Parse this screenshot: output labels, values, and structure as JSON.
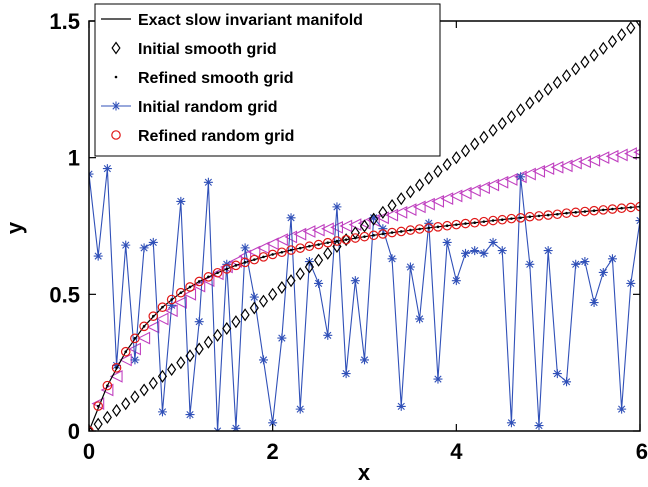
{
  "chart_data": {
    "type": "line",
    "title": "",
    "xlabel": "x",
    "ylabel": "y",
    "xlim": [
      0,
      6
    ],
    "ylim": [
      0,
      1.5
    ],
    "xticks": [
      "0",
      "2",
      "4",
      "6"
    ],
    "yticks": [
      "0",
      "0.5",
      "1",
      "1.5"
    ],
    "grid": false,
    "legend_position": "top-left",
    "colors": {
      "exact": "#000000",
      "initial_smooth": "#000000",
      "refined_smooth": "#000000",
      "initial_random": "#3050b8",
      "refined_random": "#e01818",
      "unlabeled_triangles": "#c040c0"
    },
    "series": [
      {
        "name": "Exact slow invariant manifold",
        "style": "line",
        "x": [
          0.0,
          0.2,
          0.4,
          0.6,
          0.8,
          1.0,
          1.2,
          1.4,
          1.6,
          1.8,
          2.0,
          2.2,
          2.4,
          2.6,
          2.8,
          3.0,
          3.2,
          3.4,
          3.6,
          3.8,
          4.0,
          4.2,
          4.4,
          4.6,
          4.8,
          5.0,
          5.2,
          5.4,
          5.6,
          5.8,
          6.0
        ],
        "y": [
          0.0,
          0.166,
          0.29,
          0.383,
          0.453,
          0.506,
          0.547,
          0.579,
          0.606,
          0.627,
          0.646,
          0.662,
          0.676,
          0.689,
          0.7,
          0.711,
          0.721,
          0.73,
          0.739,
          0.747,
          0.755,
          0.762,
          0.77,
          0.777,
          0.784,
          0.79,
          0.797,
          0.803,
          0.809,
          0.815,
          0.821
        ]
      },
      {
        "name": "Initial smooth grid",
        "style": "diamond",
        "x": [
          0.0,
          0.1,
          0.2,
          0.3,
          0.4,
          0.5,
          0.6,
          0.7,
          0.8,
          0.9,
          1.0,
          1.1,
          1.2,
          1.3,
          1.4,
          1.5,
          1.6,
          1.7,
          1.8,
          1.9,
          2.0,
          2.1,
          2.2,
          2.3,
          2.4,
          2.5,
          2.6,
          2.7,
          2.8,
          2.9,
          3.0,
          3.1,
          3.2,
          3.3,
          3.4,
          3.5,
          3.6,
          3.7,
          3.8,
          3.9,
          4.0,
          4.1,
          4.2,
          4.3,
          4.4,
          4.5,
          4.6,
          4.7,
          4.8,
          4.9,
          5.0,
          5.1,
          5.2,
          5.3,
          5.4,
          5.5,
          5.6,
          5.7,
          5.8,
          5.9,
          6.0
        ],
        "y": [
          0.0,
          0.025,
          0.05,
          0.075,
          0.1,
          0.125,
          0.15,
          0.175,
          0.2,
          0.225,
          0.25,
          0.275,
          0.3,
          0.325,
          0.35,
          0.375,
          0.4,
          0.425,
          0.45,
          0.475,
          0.5,
          0.525,
          0.55,
          0.575,
          0.6,
          0.625,
          0.65,
          0.675,
          0.7,
          0.725,
          0.75,
          0.775,
          0.8,
          0.825,
          0.85,
          0.875,
          0.9,
          0.925,
          0.95,
          0.975,
          1.0,
          1.025,
          1.05,
          1.075,
          1.1,
          1.125,
          1.15,
          1.175,
          1.2,
          1.225,
          1.25,
          1.275,
          1.3,
          1.325,
          1.35,
          1.375,
          1.4,
          1.425,
          1.45,
          1.475,
          1.5
        ]
      },
      {
        "name": "Refined smooth grid",
        "style": "dot",
        "x": [
          0.0,
          0.1,
          0.2,
          0.3,
          0.4,
          0.5,
          0.6,
          0.7,
          0.8,
          0.9,
          1.0,
          1.1,
          1.2,
          1.3,
          1.4,
          1.5,
          1.6,
          1.7,
          1.8,
          1.9,
          2.0,
          2.1,
          2.2,
          2.3,
          2.4,
          2.5,
          2.6,
          2.7,
          2.8,
          2.9,
          3.0,
          3.1,
          3.2,
          3.3,
          3.4,
          3.5,
          3.6,
          3.7,
          3.8,
          3.9,
          4.0,
          4.1,
          4.2,
          4.3,
          4.4,
          4.5,
          4.6,
          4.7,
          4.8,
          4.9,
          5.0,
          5.1,
          5.2,
          5.3,
          5.4,
          5.5,
          5.6,
          5.7,
          5.8,
          5.9,
          6.0
        ],
        "y": [
          0.0,
          0.091,
          0.166,
          0.231,
          0.29,
          0.339,
          0.383,
          0.42,
          0.453,
          0.481,
          0.506,
          0.527,
          0.547,
          0.564,
          0.579,
          0.593,
          0.606,
          0.617,
          0.627,
          0.637,
          0.646,
          0.654,
          0.662,
          0.669,
          0.676,
          0.682,
          0.689,
          0.695,
          0.7,
          0.706,
          0.711,
          0.716,
          0.721,
          0.726,
          0.73,
          0.735,
          0.739,
          0.743,
          0.747,
          0.751,
          0.755,
          0.759,
          0.762,
          0.766,
          0.77,
          0.773,
          0.777,
          0.78,
          0.784,
          0.787,
          0.79,
          0.793,
          0.797,
          0.8,
          0.803,
          0.806,
          0.809,
          0.812,
          0.815,
          0.818,
          0.821
        ]
      },
      {
        "name": "Initial random grid",
        "style": "line-star",
        "x": [
          0.0,
          0.1,
          0.2,
          0.3,
          0.4,
          0.5,
          0.6,
          0.7,
          0.8,
          0.9,
          1.0,
          1.1,
          1.2,
          1.3,
          1.4,
          1.5,
          1.6,
          1.7,
          1.8,
          1.9,
          2.0,
          2.1,
          2.2,
          2.3,
          2.4,
          2.5,
          2.6,
          2.7,
          2.8,
          2.9,
          3.0,
          3.1,
          3.2,
          3.3,
          3.4,
          3.5,
          3.6,
          3.7,
          3.8,
          3.9,
          4.0,
          4.1,
          4.2,
          4.3,
          4.4,
          4.5,
          4.6,
          4.7,
          4.8,
          4.9,
          5.0,
          5.1,
          5.2,
          5.3,
          5.4,
          5.5,
          5.6,
          5.7,
          5.8,
          5.9,
          6.0
        ],
        "y": [
          0.94,
          0.64,
          0.96,
          0.24,
          0.68,
          0.26,
          0.67,
          0.69,
          0.07,
          0.46,
          0.84,
          0.06,
          0.4,
          0.91,
          0.0,
          0.61,
          0.01,
          0.67,
          0.49,
          0.26,
          0.03,
          0.34,
          0.78,
          0.08,
          0.62,
          0.54,
          0.35,
          0.82,
          0.21,
          0.55,
          0.26,
          0.78,
          0.74,
          0.63,
          0.09,
          0.6,
          0.41,
          0.76,
          0.19,
          0.69,
          0.55,
          0.65,
          0.66,
          0.65,
          0.69,
          0.66,
          0.03,
          0.93,
          0.61,
          0.02,
          0.66,
          0.21,
          0.18,
          0.61,
          0.62,
          0.47,
          0.58,
          0.63,
          0.08,
          0.54,
          0.77
        ]
      },
      {
        "name": "Refined random grid",
        "style": "circle",
        "x": [
          0.0,
          0.1,
          0.2,
          0.3,
          0.4,
          0.5,
          0.6,
          0.7,
          0.8,
          0.9,
          1.0,
          1.1,
          1.2,
          1.3,
          1.4,
          1.5,
          1.6,
          1.7,
          1.8,
          1.9,
          2.0,
          2.1,
          2.2,
          2.3,
          2.4,
          2.5,
          2.6,
          2.7,
          2.8,
          2.9,
          3.0,
          3.1,
          3.2,
          3.3,
          3.4,
          3.5,
          3.6,
          3.7,
          3.8,
          3.9,
          4.0,
          4.1,
          4.2,
          4.3,
          4.4,
          4.5,
          4.6,
          4.7,
          4.8,
          4.9,
          5.0,
          5.1,
          5.2,
          5.3,
          5.4,
          5.5,
          5.6,
          5.7,
          5.8,
          5.9,
          6.0
        ],
        "y": [
          0.0,
          0.091,
          0.166,
          0.231,
          0.29,
          0.339,
          0.383,
          0.42,
          0.453,
          0.481,
          0.506,
          0.527,
          0.547,
          0.564,
          0.579,
          0.593,
          0.606,
          0.617,
          0.627,
          0.637,
          0.646,
          0.654,
          0.662,
          0.669,
          0.676,
          0.682,
          0.689,
          0.695,
          0.7,
          0.706,
          0.711,
          0.716,
          0.721,
          0.726,
          0.73,
          0.735,
          0.739,
          0.743,
          0.747,
          0.751,
          0.755,
          0.759,
          0.762,
          0.766,
          0.77,
          0.773,
          0.777,
          0.78,
          0.784,
          0.787,
          0.79,
          0.793,
          0.797,
          0.8,
          0.803,
          0.806,
          0.809,
          0.812,
          0.815,
          0.818,
          0.821
        ]
      },
      {
        "name": "",
        "style": "triangle-left",
        "x": [
          0.1,
          0.2,
          0.3,
          0.4,
          0.5,
          0.6,
          0.7,
          0.8,
          0.9,
          1.0,
          1.1,
          1.2,
          1.3,
          1.4,
          1.5,
          1.6,
          1.7,
          1.8,
          1.9,
          2.0,
          2.1,
          2.2,
          2.3,
          2.4,
          2.5,
          2.6,
          2.7,
          2.8,
          2.9,
          3.0,
          3.1,
          3.2,
          3.3,
          3.4,
          3.5,
          3.6,
          3.7,
          3.8,
          3.9,
          4.0,
          4.1,
          4.2,
          4.3,
          4.4,
          4.5,
          4.6,
          4.7,
          4.8,
          4.9,
          5.0,
          5.1,
          5.2,
          5.3,
          5.4,
          5.5,
          5.6,
          5.7,
          5.8,
          5.9,
          6.0
        ],
        "y": [
          0.1,
          0.15,
          0.2,
          0.26,
          0.3,
          0.34,
          0.38,
          0.41,
          0.44,
          0.47,
          0.5,
          0.53,
          0.55,
          0.575,
          0.6,
          0.62,
          0.64,
          0.655,
          0.67,
          0.685,
          0.7,
          0.71,
          0.72,
          0.73,
          0.735,
          0.74,
          0.745,
          0.75,
          0.755,
          0.76,
          0.77,
          0.78,
          0.79,
          0.8,
          0.81,
          0.82,
          0.83,
          0.84,
          0.85,
          0.86,
          0.87,
          0.88,
          0.89,
          0.9,
          0.91,
          0.92,
          0.93,
          0.94,
          0.95,
          0.96,
          0.965,
          0.97,
          0.98,
          0.985,
          0.99,
          1.0,
          1.005,
          1.01,
          1.015,
          1.02
        ]
      }
    ]
  }
}
